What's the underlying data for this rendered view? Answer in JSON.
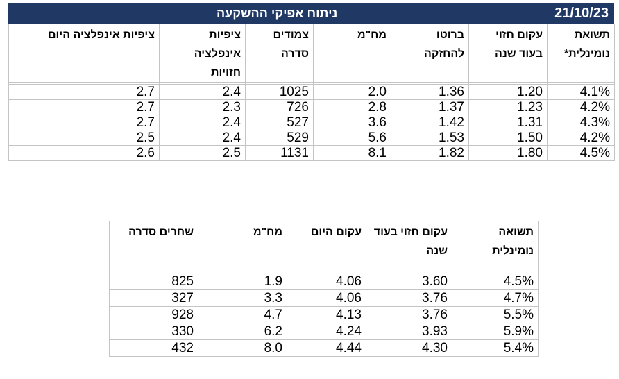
{
  "header": {
    "title": "ניתוח אפיקי ההשקעה",
    "date": "21/10/23"
  },
  "table1": {
    "columns": [
      "תשואת נומינלית*",
      "עקום חזוי בעוד שנה",
      "ברוטו להחזקה",
      "מח\"מ",
      "צמודים סדרה",
      "ציפיות אינפלציה חזויות",
      "ציפיות אינפלציה היום"
    ],
    "rows": [
      [
        "4.1%",
        "1.20",
        "1.36",
        "2.0",
        "1025",
        "2.4",
        "2.7"
      ],
      [
        "4.2%",
        "1.23",
        "1.37",
        "2.8",
        "726",
        "2.3",
        "2.7"
      ],
      [
        "4.3%",
        "1.31",
        "1.42",
        "3.6",
        "527",
        "2.4",
        "2.7"
      ],
      [
        "4.2%",
        "1.50",
        "1.53",
        "5.6",
        "529",
        "2.4",
        "2.5"
      ],
      [
        "4.5%",
        "1.80",
        "1.82",
        "8.1",
        "1131",
        "2.5",
        "2.6"
      ]
    ]
  },
  "table2": {
    "columns": [
      "תשואה נומינלית",
      "עקום חזוי בעוד שנה",
      "עקום היום",
      "מח\"מ",
      "שחרים סדרה"
    ],
    "rows": [
      [
        "4.5%",
        "3.60",
        "4.06",
        "1.9",
        "825"
      ],
      [
        "4.7%",
        "3.76",
        "4.06",
        "3.3",
        "327"
      ],
      [
        "5.5%",
        "3.76",
        "4.13",
        "4.7",
        "928"
      ],
      [
        "5.9%",
        "3.93",
        "4.24",
        "6.2",
        "330"
      ],
      [
        "5.4%",
        "4.30",
        "4.44",
        "8.0",
        "432"
      ]
    ]
  }
}
